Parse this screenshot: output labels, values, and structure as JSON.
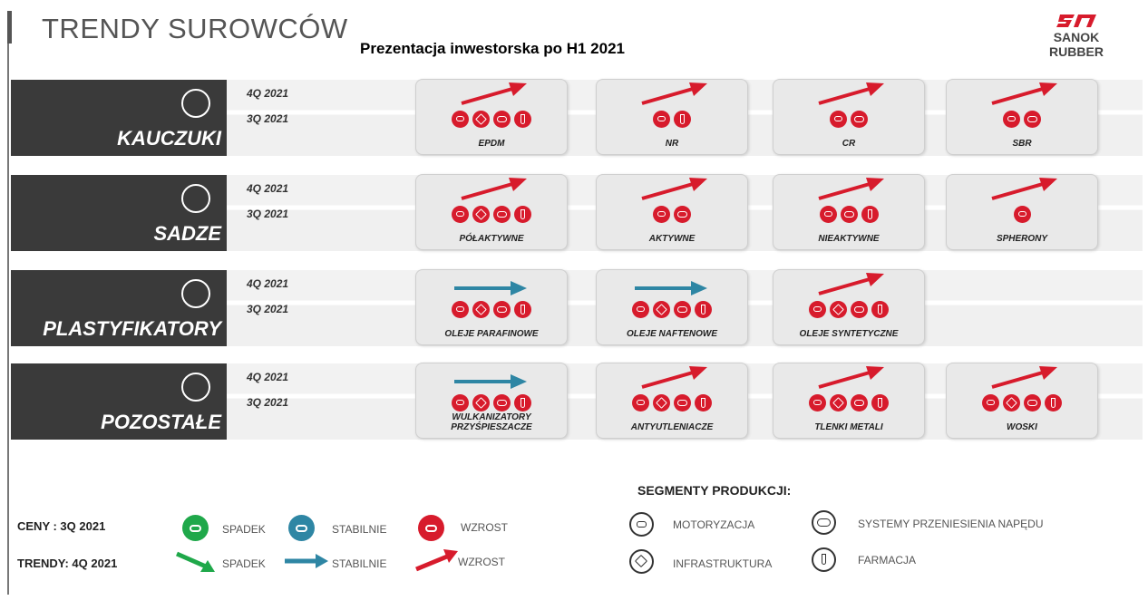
{
  "header": {
    "title": "TRENDY SUROWCÓW",
    "subtitle": "Prezentacja inwestorska po H1 2021",
    "logo_text": "SANOK RUBBER"
  },
  "colors": {
    "increase": "#d71b2c",
    "stable": "#2e86a4",
    "decrease": "#1fa84a",
    "band_dark": "#3a3a3a"
  },
  "quarters": {
    "q4": "4Q 2021",
    "q3": "3Q 2021"
  },
  "categories": [
    {
      "name": "KAUCZUKI",
      "icon": "molecule-icon",
      "items": [
        {
          "label": "EPDM",
          "trend": "up",
          "segments": [
            "car",
            "home",
            "belt",
            "vial"
          ]
        },
        {
          "label": "NR",
          "trend": "up",
          "segments": [
            "car",
            "vial"
          ]
        },
        {
          "label": "CR",
          "trend": "up",
          "segments": [
            "car",
            "belt"
          ]
        },
        {
          "label": "SBR",
          "trend": "up",
          "segments": [
            "car",
            "belt"
          ]
        }
      ]
    },
    {
      "name": "SADZE",
      "icon": "particles-icon",
      "items": [
        {
          "label": "PÓŁAKTYWNE",
          "trend": "up",
          "segments": [
            "car",
            "home",
            "belt",
            "vial"
          ]
        },
        {
          "label": "AKTYWNE",
          "trend": "up",
          "segments": [
            "car",
            "belt"
          ]
        },
        {
          "label": "NIEAKTYWNE",
          "trend": "up",
          "segments": [
            "car",
            "belt",
            "vial"
          ]
        },
        {
          "label": "SPHERONY",
          "trend": "up",
          "segments": [
            "car"
          ]
        }
      ]
    },
    {
      "name": "PLASTYFIKATORY",
      "icon": "hexagon-network-icon",
      "items": [
        {
          "label": "OLEJE PARAFINOWE",
          "trend": "stable",
          "segments": [
            "car",
            "home",
            "belt",
            "vial"
          ]
        },
        {
          "label": "OLEJE NAFTENOWE",
          "trend": "stable",
          "segments": [
            "car",
            "home",
            "belt",
            "vial"
          ]
        },
        {
          "label": "OLEJE SYNTETYCZNE",
          "trend": "up",
          "segments": [
            "car",
            "home",
            "belt",
            "vial"
          ]
        }
      ]
    },
    {
      "name": "POZOSTAŁE",
      "icon": "flask-icon",
      "items": [
        {
          "label": "WULKANIZATORY\nPRZYŚPIESZACZE",
          "trend": "stable",
          "segments": [
            "car",
            "home",
            "belt",
            "vial"
          ]
        },
        {
          "label": "ANTYUTLENIACZE",
          "trend": "up",
          "segments": [
            "car",
            "home",
            "belt",
            "vial"
          ]
        },
        {
          "label": "TLENKI METALI",
          "trend": "up",
          "segments": [
            "car",
            "home",
            "belt",
            "vial"
          ]
        },
        {
          "label": "WOSKI",
          "trend": "up",
          "segments": [
            "car",
            "home",
            "belt",
            "vial"
          ]
        }
      ]
    }
  ],
  "legend": {
    "prices_label": "CENY : 3Q 2021",
    "trends_label": "TRENDY:  4Q 2021",
    "decrease": "SPADEK",
    "stable": "STABILNIE",
    "increase": "WZROST",
    "segments_title": "SEGMENTY PRODUKCJI:",
    "segments": {
      "car": "MOTORYZACJA",
      "home": "INFRASTRUKTURA",
      "belt": "SYSTEMY PRZENIESIENIA NAPĘDU",
      "vial": "FARMACJA"
    }
  }
}
